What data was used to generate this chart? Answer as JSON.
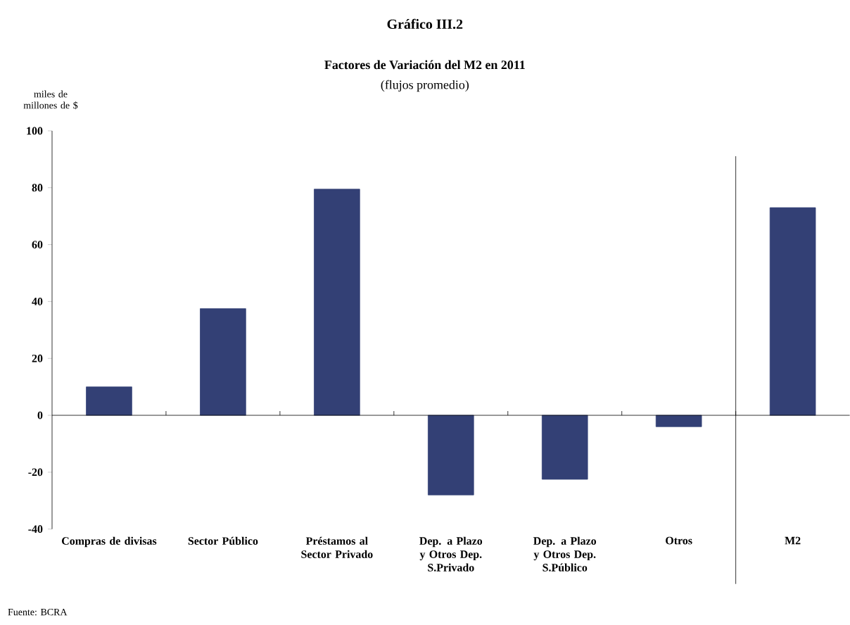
{
  "chart_data": {
    "type": "bar",
    "title": "Gráfico III.2",
    "subtitle": "Factores de Variación del M2 en 2011",
    "ylabel": "miles de millones de $",
    "annotations": [
      "(flujos promedio)",
      "Fuente: BCRA"
    ],
    "categories": [
      "Compras de divisas",
      "Sector Público",
      "Préstamos al Sector Privado",
      "Dep. a Plazo y Otros Dep. S.Privado",
      "Dep. a Plazo y Otros Dep. S.Público",
      "Otros",
      "M2"
    ],
    "values": [
      10,
      37.5,
      79.5,
      -28,
      -22.5,
      -4,
      73
    ],
    "color": "#334075",
    "ylim": [
      -40,
      100
    ],
    "yticks": [
      -40,
      -20,
      0,
      20,
      40,
      60,
      80,
      100
    ]
  }
}
